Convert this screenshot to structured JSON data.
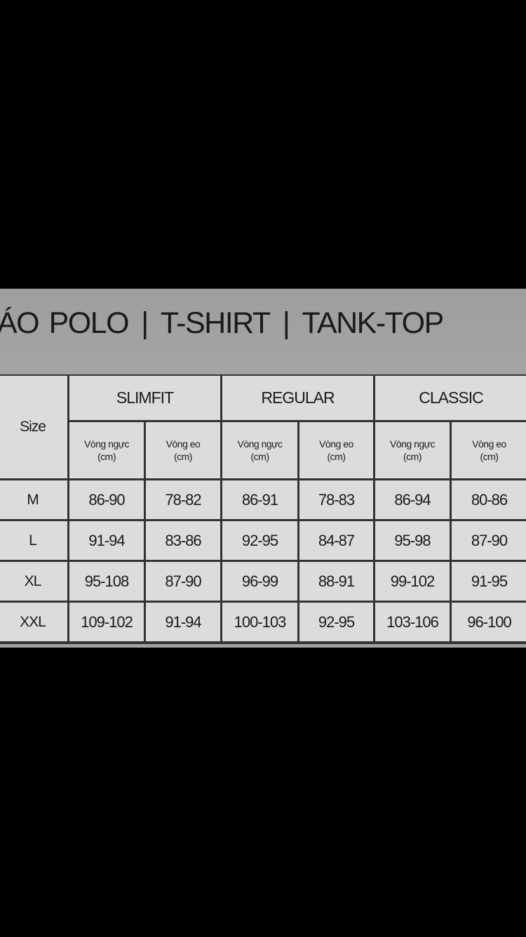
{
  "title": {
    "parts": [
      "ÁO POLO",
      "T-SHIRT",
      "TANK-TOP"
    ],
    "separator": "|"
  },
  "table": {
    "size_header": "Size",
    "groups": [
      "SLIMFIT",
      "REGULAR",
      "CLASSIC"
    ],
    "subheaders": [
      {
        "line1": "Vòng ngực",
        "line2": "(cm)"
      },
      {
        "line1": "Vòng eo",
        "line2": "(cm)"
      }
    ],
    "rows": [
      {
        "size": "M",
        "values": [
          "86-90",
          "78-82",
          "86-91",
          "78-83",
          "86-94",
          "80-86"
        ]
      },
      {
        "size": "L",
        "values": [
          "91-94",
          "83-86",
          "92-95",
          "84-87",
          "95-98",
          "87-90"
        ]
      },
      {
        "size": "XL",
        "values": [
          "95-108",
          "87-90",
          "96-99",
          "88-91",
          "99-102",
          "91-95"
        ]
      },
      {
        "size": "XXL",
        "values": [
          "109-102",
          "91-94",
          "100-103",
          "92-95",
          "103-106",
          "96-100"
        ]
      }
    ]
  }
}
